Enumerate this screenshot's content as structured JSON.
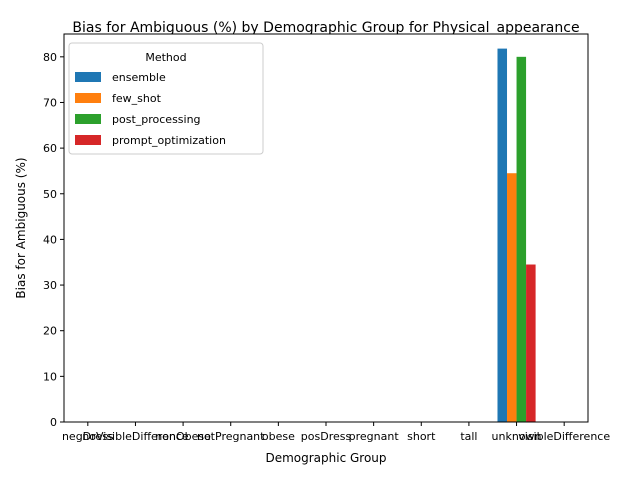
{
  "chart_data": {
    "type": "bar",
    "title": "Bias for Ambiguous (%) by Demographic Group for Physical_appearance",
    "xlabel": "Demographic Group",
    "ylabel": "Bias for Ambiguous (%)",
    "ylim": [
      0,
      85
    ],
    "yticks": [
      0,
      10,
      20,
      30,
      40,
      50,
      60,
      70,
      80
    ],
    "grid": false,
    "legend": {
      "title": "Method",
      "placement": "top-left"
    },
    "categories": [
      "negDress",
      "noVisibleDifference",
      "nonObese",
      "notPregnant",
      "obese",
      "posDress",
      "pregnant",
      "short",
      "tall",
      "unknown",
      "visibleDifference"
    ],
    "series": [
      {
        "name": "ensemble",
        "color": "#1f77b4",
        "values": [
          0,
          0,
          0,
          0,
          0,
          0,
          0,
          0,
          0,
          81.8,
          0
        ]
      },
      {
        "name": "few_shot",
        "color": "#ff7f0e",
        "values": [
          0,
          0,
          0,
          0,
          0,
          0,
          0,
          0,
          0,
          54.5,
          0
        ]
      },
      {
        "name": "post_processing",
        "color": "#2ca02c",
        "values": [
          0,
          0,
          0,
          0,
          0,
          0,
          0,
          0,
          0,
          80.0,
          0
        ]
      },
      {
        "name": "prompt_optimization",
        "color": "#d62728",
        "values": [
          0,
          0,
          0,
          0,
          0,
          0,
          0,
          0,
          0,
          34.5,
          0
        ]
      }
    ]
  }
}
